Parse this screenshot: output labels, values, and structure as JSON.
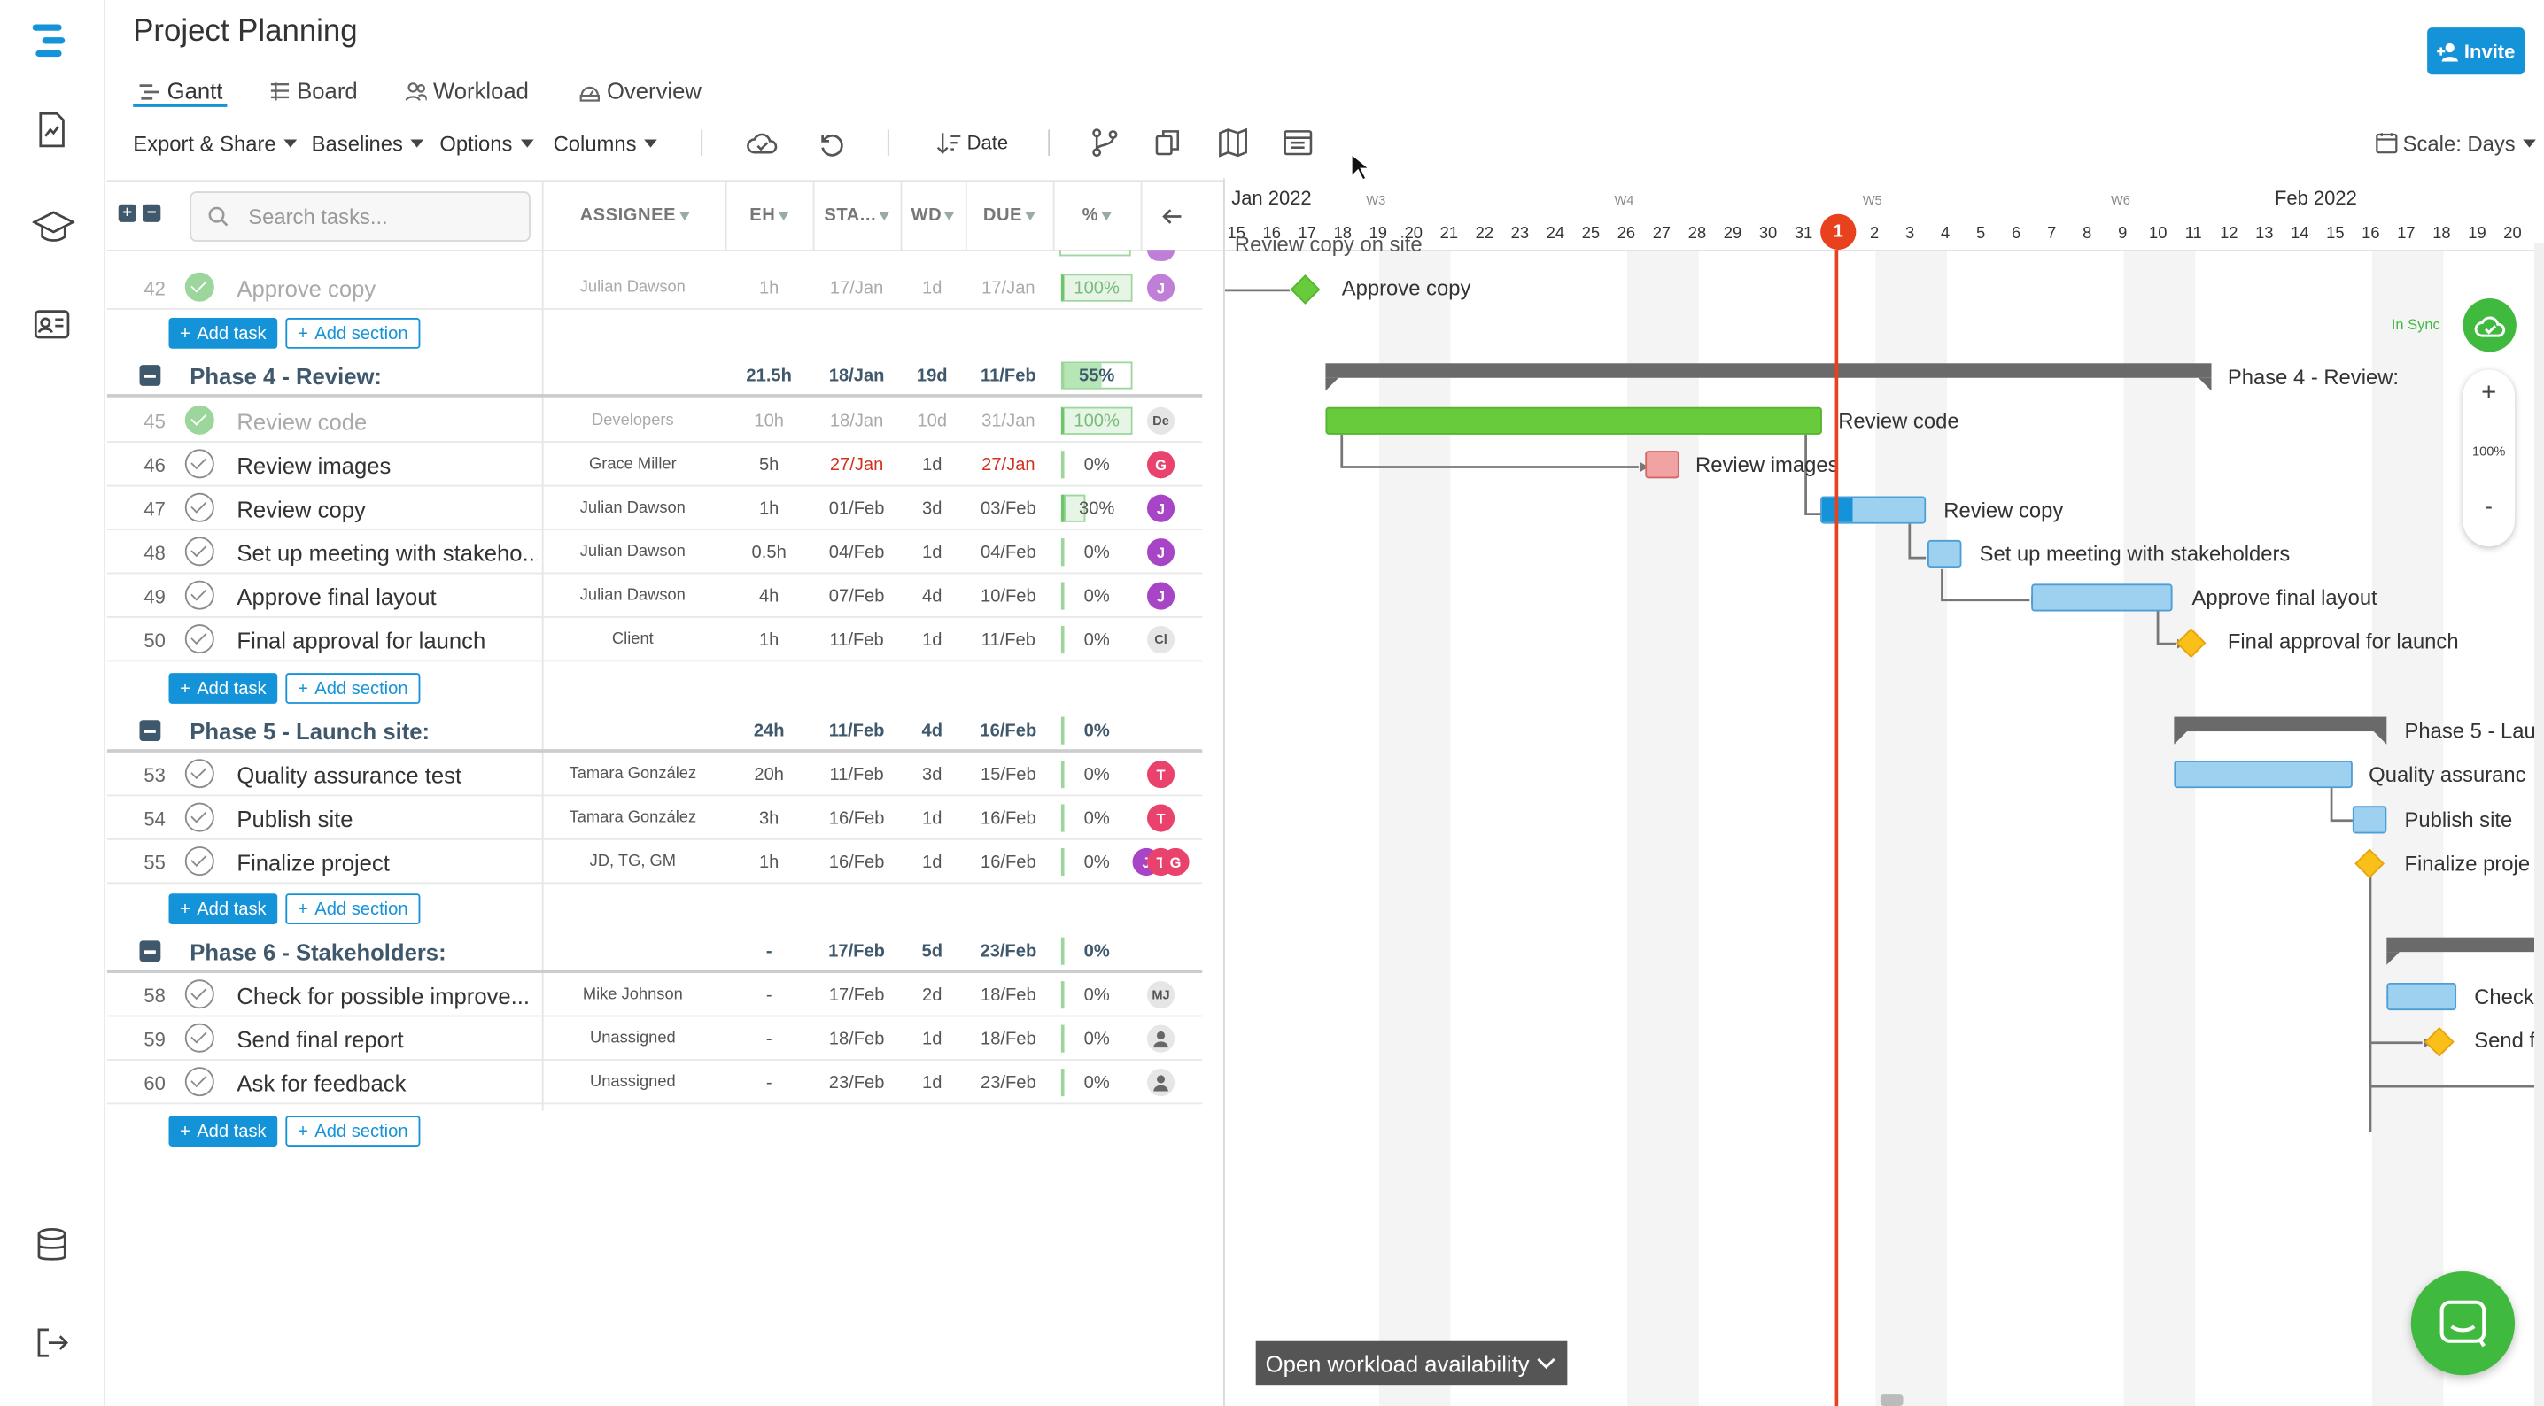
{
  "app": {
    "title": "Project Planning",
    "invite": "Invite"
  },
  "tabs": [
    {
      "label": "Gantt"
    },
    {
      "label": "Board"
    },
    {
      "label": "Workload"
    },
    {
      "label": "Overview"
    }
  ],
  "toolbar": {
    "export": "Export & Share",
    "baselines": "Baselines",
    "options": "Options",
    "columns": "Columns",
    "date": "Date",
    "scale": "Scale: Days"
  },
  "grid": {
    "search_placeholder": "Search tasks...",
    "headers": {
      "assignee": "ASSIGNEE",
      "eh": "EH",
      "start": "STA...",
      "wd": "WD",
      "due": "DUE",
      "pct": "%"
    }
  },
  "buttons": {
    "add_task": "Add task",
    "add_section": "Add section"
  },
  "rows": [
    {
      "num": "42",
      "name": "Approve copy",
      "assignee": "Julian Dawson",
      "eh": "1h",
      "start": "17/Jan",
      "wd": "1d",
      "due": "17/Jan",
      "pct": "100%",
      "done": true,
      "avatar": "J",
      "avatar_color": "#c07fd7"
    },
    {
      "num": "45",
      "name": "Review code",
      "assignee": "Developers",
      "eh": "10h",
      "start": "18/Jan",
      "wd": "10d",
      "due": "31/Jan",
      "pct": "100%",
      "done": true,
      "avatar": "De"
    },
    {
      "num": "46",
      "name": "Review images",
      "assignee": "Grace Miller",
      "eh": "5h",
      "start": "27/Jan",
      "wd": "1d",
      "due": "27/Jan",
      "pct": "0%",
      "avatar": "G",
      "avatar_color": "#e8426d"
    },
    {
      "num": "47",
      "name": "Review copy",
      "assignee": "Julian Dawson",
      "eh": "1h",
      "start": "01/Feb",
      "wd": "3d",
      "due": "03/Feb",
      "pct": "30%",
      "avatar": "J",
      "avatar_color": "#a845c6"
    },
    {
      "num": "48",
      "name": "Set up meeting with stakeho...",
      "assignee": "Julian Dawson",
      "eh": "0.5h",
      "start": "04/Feb",
      "wd": "1d",
      "due": "04/Feb",
      "pct": "0%",
      "avatar": "J",
      "avatar_color": "#a845c6"
    },
    {
      "num": "49",
      "name": "Approve final layout",
      "assignee": "Julian Dawson",
      "eh": "4h",
      "start": "07/Feb",
      "wd": "4d",
      "due": "10/Feb",
      "pct": "0%",
      "avatar": "J",
      "avatar_color": "#a845c6"
    },
    {
      "num": "50",
      "name": "Final approval for launch",
      "assignee": "Client",
      "eh": "1h",
      "start": "11/Feb",
      "wd": "1d",
      "due": "11/Feb",
      "pct": "0%",
      "avatar": "Cl"
    },
    {
      "num": "53",
      "name": "Quality assurance test",
      "assignee": "Tamara González",
      "eh": "20h",
      "start": "11/Feb",
      "wd": "3d",
      "due": "15/Feb",
      "pct": "0%",
      "avatar": "T",
      "avatar_color": "#e8426d"
    },
    {
      "num": "54",
      "name": "Publish site",
      "assignee": "Tamara González",
      "eh": "3h",
      "start": "16/Feb",
      "wd": "1d",
      "due": "16/Feb",
      "pct": "0%",
      "avatar": "T",
      "avatar_color": "#e8426d"
    },
    {
      "num": "55",
      "name": "Finalize project",
      "assignee": "JD, TG, GM",
      "eh": "1h",
      "start": "16/Feb",
      "wd": "1d",
      "due": "16/Feb",
      "pct": "0%",
      "avatars": [
        "J",
        "T",
        "G"
      ]
    },
    {
      "num": "58",
      "name": "Check for possible improve...",
      "assignee": "Mike Johnson",
      "eh": "-",
      "start": "17/Feb",
      "wd": "2d",
      "due": "18/Feb",
      "pct": "0%",
      "avatar": "MJ"
    },
    {
      "num": "59",
      "name": "Send final report",
      "assignee": "Unassigned",
      "eh": "-",
      "start": "18/Feb",
      "wd": "1d",
      "due": "18/Feb",
      "pct": "0%"
    },
    {
      "num": "60",
      "name": "Ask for feedback",
      "assignee": "Unassigned",
      "eh": "-",
      "start": "23/Feb",
      "wd": "1d",
      "due": "23/Feb",
      "pct": "0%"
    }
  ],
  "phases": [
    {
      "name": "Phase 4 - Review:",
      "eh": "21.5h",
      "start": "18/Jan",
      "wd": "19d",
      "due": "11/Feb",
      "pct": "55%"
    },
    {
      "name": "Phase 5 - Launch site:",
      "eh": "24h",
      "start": "11/Feb",
      "wd": "4d",
      "due": "16/Feb",
      "pct": "0%"
    },
    {
      "name": "Phase 6 - Stakeholders:",
      "eh": "-",
      "start": "17/Feb",
      "wd": "5d",
      "due": "23/Feb",
      "pct": "0%"
    }
  ],
  "gantt": {
    "months": [
      "Jan 2022",
      "Feb 2022"
    ],
    "weeks": [
      "W3",
      "W4",
      "W5",
      "W6"
    ],
    "days": [
      "15",
      "16",
      "17",
      "18",
      "19",
      "20",
      "21",
      "22",
      "23",
      "24",
      "25",
      "26",
      "27",
      "28",
      "29",
      "30",
      "31",
      "1",
      "2",
      "3",
      "4",
      "5",
      "6",
      "7",
      "8",
      "9",
      "10",
      "11",
      "12",
      "13",
      "14",
      "15",
      "16",
      "17",
      "18",
      "19",
      "20"
    ],
    "today": "1",
    "labels": {
      "approve_copy": "Approve copy",
      "phase4": "Phase 4 - Review:",
      "review_code": "Review code",
      "review_images": "Review images",
      "review_copy": "Review copy",
      "setup": "Set up meeting with stakeholders",
      "approve_layout": "Approve final layout",
      "final_approval": "Final approval for launch",
      "phase5": "Phase 5 - Lau",
      "qa": "Quality assuranc",
      "publish": "Publish site",
      "finalize": "Finalize proje",
      "check": "Check",
      "send": "Send f",
      "partial_top": "Review copy on site"
    },
    "sync": "In Sync",
    "zoom": "100%",
    "workload_button": "Open workload availability"
  },
  "colors": {
    "accent": "#1593d9",
    "done_green": "#67cb3c",
    "today_red": "#e8411e",
    "milestone_yellow": "#fbbf1a"
  }
}
